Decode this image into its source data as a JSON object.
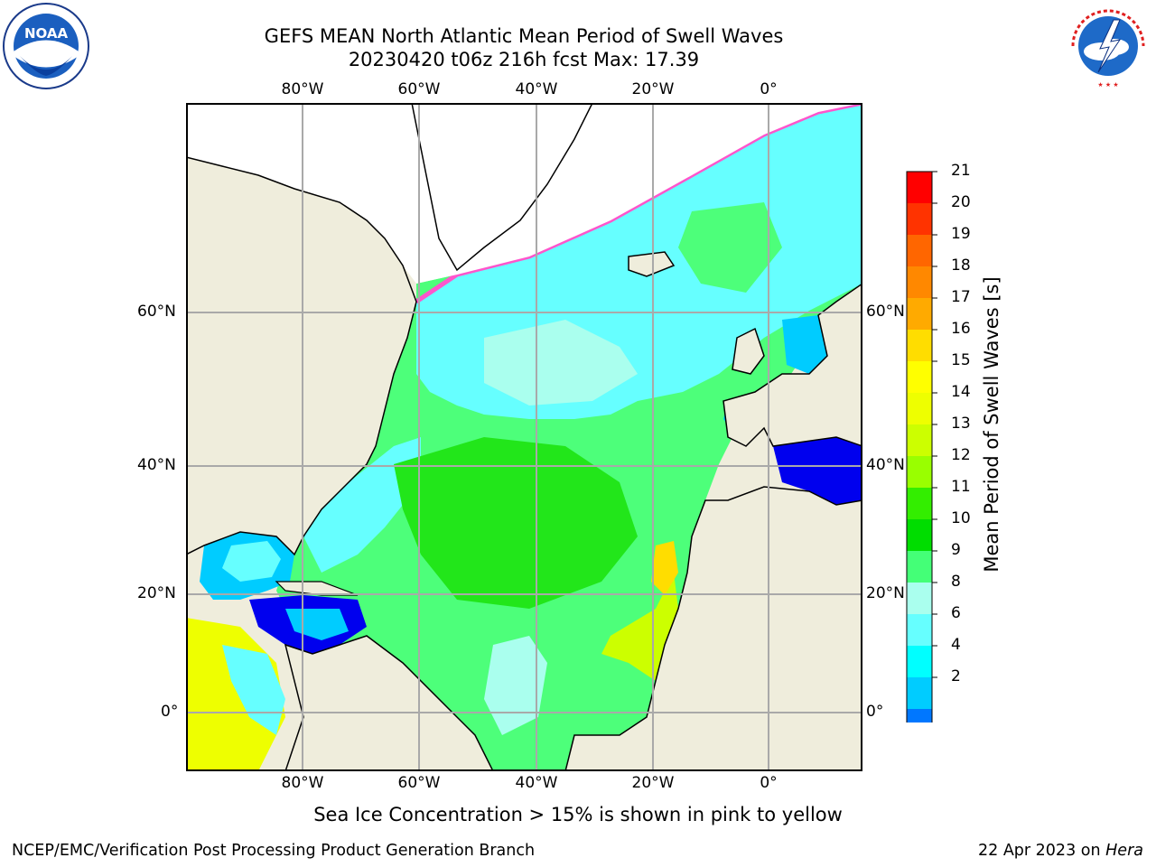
{
  "title_line1": "GEFS MEAN North Atlantic Mean Period of Swell Waves",
  "title_line2": "20230420 t06z 216h fcst   Max: 17.39",
  "lon_labels": [
    "80°W",
    "60°W",
    "40°W",
    "20°W",
    "0°"
  ],
  "lat_labels": [
    "60°N",
    "40°N",
    "20°N",
    "0°"
  ],
  "colorbar": {
    "label": "Mean Period of Swell Waves [s]",
    "ticks": [
      "21",
      "20",
      "19",
      "18",
      "17",
      "16",
      "15",
      "14",
      "13",
      "12",
      "11",
      "10",
      "9",
      "8",
      "6",
      "4",
      "2"
    ],
    "colors": [
      "#ff0000",
      "#ff3300",
      "#ff6600",
      "#ff8800",
      "#ffaa00",
      "#ffdd00",
      "#ffff00",
      "#eeff00",
      "#ccff00",
      "#99ff00",
      "#33ee00",
      "#00dd00",
      "#44ff77",
      "#aaffee",
      "#66ffff",
      "#00ffff",
      "#00ccff",
      "#0077ff"
    ],
    "extend_color": "#0000ee"
  },
  "sea_ice_note": "Sea Ice Concentration > 15% is shown in pink to yellow",
  "credit": "NCEP/EMC/Verification Post Processing Product Generation Branch",
  "date_text": "22 Apr 2023 on ",
  "date_machine": "Hera",
  "logos": {
    "noaa": "NOAA",
    "nws": "NATIONAL WEATHER SERVICE"
  },
  "colors": {
    "land": "#efeddc",
    "ocean_base": "#4dff7a",
    "grid": "#a9a9a9"
  }
}
